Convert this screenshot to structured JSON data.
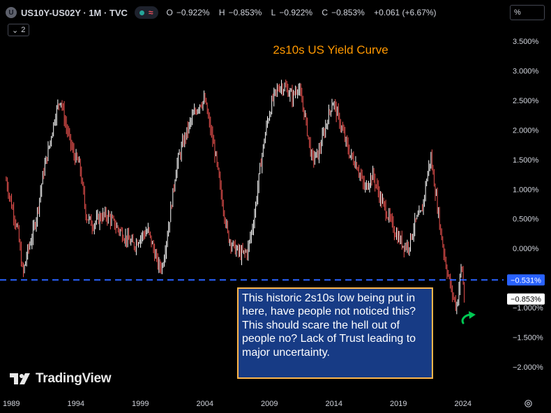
{
  "header": {
    "symbol_icon": "U",
    "symbol": "US10Y-US02Y · 1M · TVC",
    "ohlc": [
      {
        "label": "O",
        "value": "−0.922%"
      },
      {
        "label": "H",
        "value": "−0.853%"
      },
      {
        "label": "L",
        "value": "−0.922%"
      },
      {
        "label": "C",
        "value": "−0.853%"
      },
      {
        "label": "",
        "value": "+0.061 (+6.67%)"
      }
    ],
    "indicator_count": "2",
    "scale_unit": "%"
  },
  "watermark": "TradingView",
  "annotation": {
    "text": "This historic 2s10s low being put in here, have people not noticed this? This should scare the hell out of people no? Lack of Trust leading to major uncertainty."
  },
  "colors": {
    "background": "#000000",
    "candle_up": "#ffffff",
    "candle_down": "#ef5350",
    "title": "#ff9800",
    "reference_line": "#2962ff",
    "annotation_bg": "#173b85",
    "annotation_border": "#ffb74d",
    "arrow": "#00c853"
  },
  "chart_data": {
    "type": "candlestick",
    "title": "2s10s  US Yield Curve",
    "ylim": [
      -2.25,
      3.75
    ],
    "yticks": [
      "3.500%",
      "3.000%",
      "2.500%",
      "2.000%",
      "1.500%",
      "1.000%",
      "0.500%",
      "0.000%",
      "−0.500%",
      "−1.000%",
      "−1.500%",
      "−2.000%"
    ],
    "ytick_values": [
      3.5,
      3.0,
      2.5,
      2.0,
      1.5,
      1.0,
      0.5,
      0.0,
      -0.5,
      -1.0,
      -1.5,
      -2.0
    ],
    "xticks": [
      "1989",
      "1994",
      "1999",
      "2004",
      "2009",
      "2014",
      "2019",
      "2024"
    ],
    "xtick_values": [
      1989,
      1994,
      1999,
      2004,
      2009,
      2014,
      2019,
      2024
    ],
    "xlim": [
      1988.5,
      2027.2
    ],
    "reference_line": {
      "value": -0.531,
      "label": "−0.531%"
    },
    "last_value": {
      "value": -0.853,
      "label": "−0.853%"
    },
    "series": [
      {
        "keypoints": [
          [
            1988.6,
            1.15
          ],
          [
            1989.0,
            0.75
          ],
          [
            1989.5,
            0.3
          ],
          [
            1989.9,
            -0.45
          ],
          [
            1990.2,
            -0.1
          ],
          [
            1990.6,
            0.2
          ],
          [
            1991.0,
            0.6
          ],
          [
            1991.5,
            1.3
          ],
          [
            1992.0,
            1.8
          ],
          [
            1992.4,
            2.25
          ],
          [
            1992.8,
            2.55
          ],
          [
            1993.2,
            2.1
          ],
          [
            1993.8,
            1.6
          ],
          [
            1994.3,
            1.4
          ],
          [
            1994.8,
            0.55
          ],
          [
            1995.3,
            0.4
          ],
          [
            1996.0,
            0.55
          ],
          [
            1996.5,
            0.55
          ],
          [
            1997.2,
            0.35
          ],
          [
            1997.8,
            0.2
          ],
          [
            1998.5,
            0.05
          ],
          [
            1999.0,
            0.2
          ],
          [
            1999.6,
            0.3
          ],
          [
            2000.0,
            0.0
          ],
          [
            2000.4,
            -0.3
          ],
          [
            2000.7,
            -0.3
          ],
          [
            2001.2,
            0.4
          ],
          [
            2001.8,
            1.4
          ],
          [
            2002.4,
            1.85
          ],
          [
            2003.0,
            2.2
          ],
          [
            2003.6,
            2.45
          ],
          [
            2004.0,
            2.5
          ],
          [
            2004.3,
            2.15
          ],
          [
            2004.8,
            1.6
          ],
          [
            2005.2,
            1.0
          ],
          [
            2005.8,
            0.2
          ],
          [
            2006.3,
            0.0
          ],
          [
            2006.8,
            -0.1
          ],
          [
            2007.3,
            -0.05
          ],
          [
            2007.8,
            0.5
          ],
          [
            2008.3,
            1.4
          ],
          [
            2008.8,
            2.1
          ],
          [
            2009.3,
            2.55
          ],
          [
            2009.8,
            2.75
          ],
          [
            2010.3,
            2.7
          ],
          [
            2010.8,
            2.55
          ],
          [
            2011.2,
            2.75
          ],
          [
            2011.7,
            2.3
          ],
          [
            2012.3,
            1.5
          ],
          [
            2012.8,
            1.6
          ],
          [
            2013.4,
            2.1
          ],
          [
            2013.9,
            2.5
          ],
          [
            2014.5,
            2.1
          ],
          [
            2015.2,
            1.6
          ],
          [
            2015.8,
            1.4
          ],
          [
            2016.4,
            1.0
          ],
          [
            2017.0,
            1.25
          ],
          [
            2017.6,
            0.85
          ],
          [
            2018.2,
            0.55
          ],
          [
            2018.8,
            0.25
          ],
          [
            2019.4,
            0.05
          ],
          [
            2019.8,
            0.05
          ],
          [
            2020.3,
            0.45
          ],
          [
            2020.8,
            0.6
          ],
          [
            2021.2,
            1.2
          ],
          [
            2021.5,
            1.55
          ],
          [
            2021.9,
            0.9
          ],
          [
            2022.3,
            0.25
          ],
          [
            2022.7,
            -0.3
          ],
          [
            2023.1,
            -0.7
          ],
          [
            2023.5,
            -1.0
          ],
          [
            2023.9,
            -0.25
          ],
          [
            2024.1,
            -0.85
          ]
        ]
      }
    ]
  }
}
